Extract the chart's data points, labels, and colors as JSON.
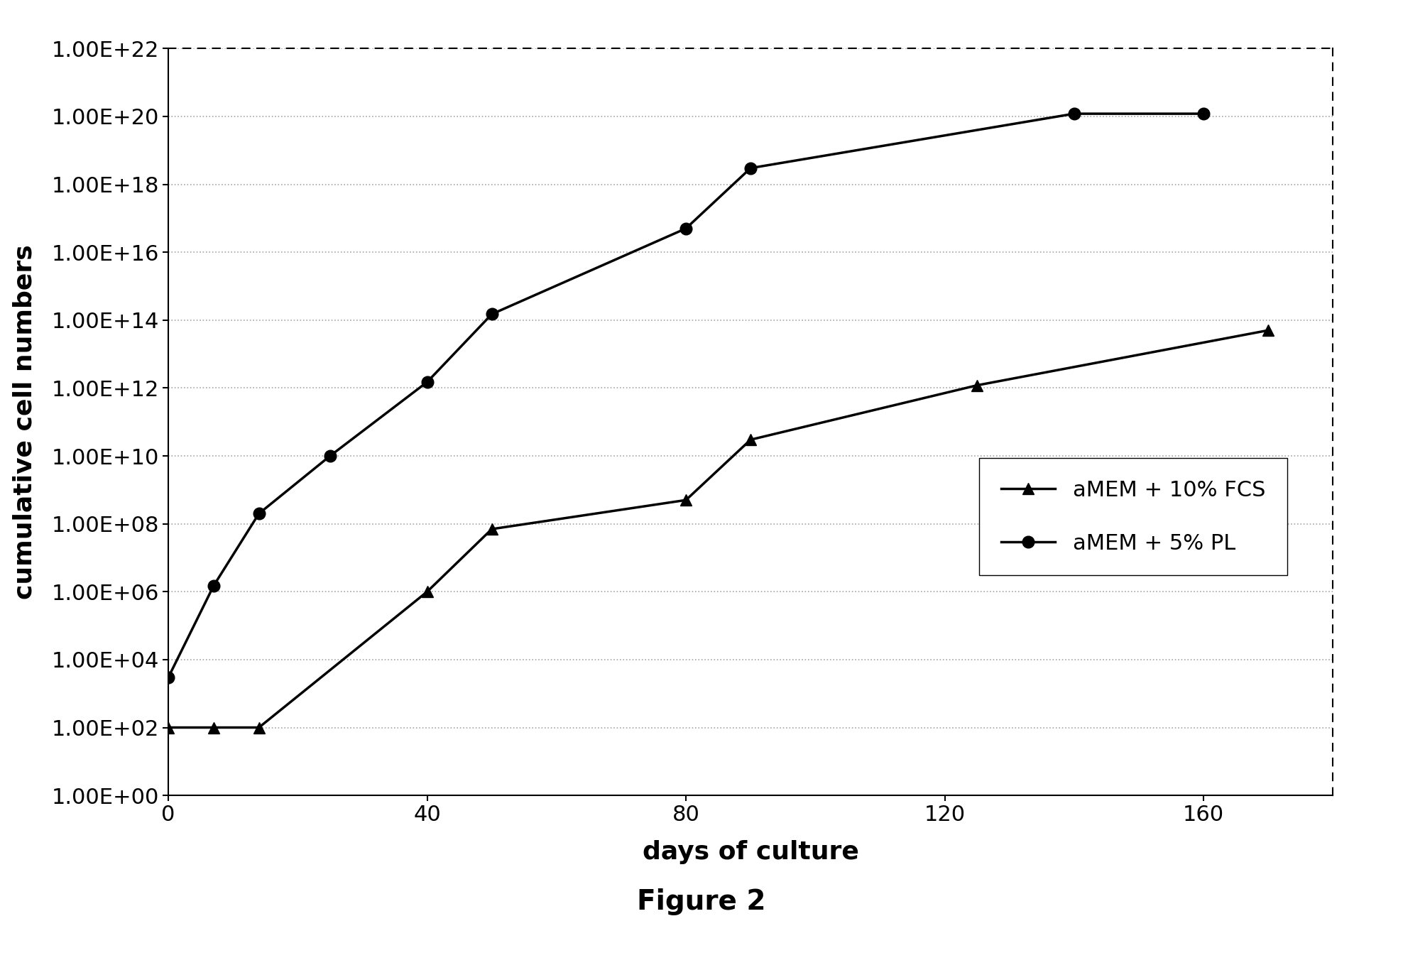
{
  "fcs_x": [
    0,
    7,
    14,
    40,
    50,
    80,
    90,
    125,
    170
  ],
  "fcs_y": [
    100.0,
    100.0,
    100.0,
    1000000.0,
    70000000.0,
    500000000.0,
    30000000000.0,
    1200000000000.0,
    50000000000000.0
  ],
  "pl_x": [
    0,
    7,
    14,
    25,
    40,
    50,
    80,
    90,
    140,
    160
  ],
  "pl_y": [
    3000.0,
    1500000.0,
    200000000.0,
    10000000000.0,
    1500000000000.0,
    150000000000000.0,
    5e+16,
    3e+18,
    1.2e+20,
    1.2e+20
  ],
  "xlabel": "days of culture",
  "ylabel": "cumulative cell numbers",
  "legend_fcs": "aMEM + 10% FCS",
  "legend_pl": "aMEM + 5% PL",
  "title": "Figure 2",
  "ylim_min": 1,
  "ylim_max": 1e+22,
  "xlim_min": 0,
  "xlim_max": 180,
  "xticks": [
    0,
    40,
    80,
    120,
    160
  ],
  "background_color": "#ffffff",
  "line_color": "#000000"
}
